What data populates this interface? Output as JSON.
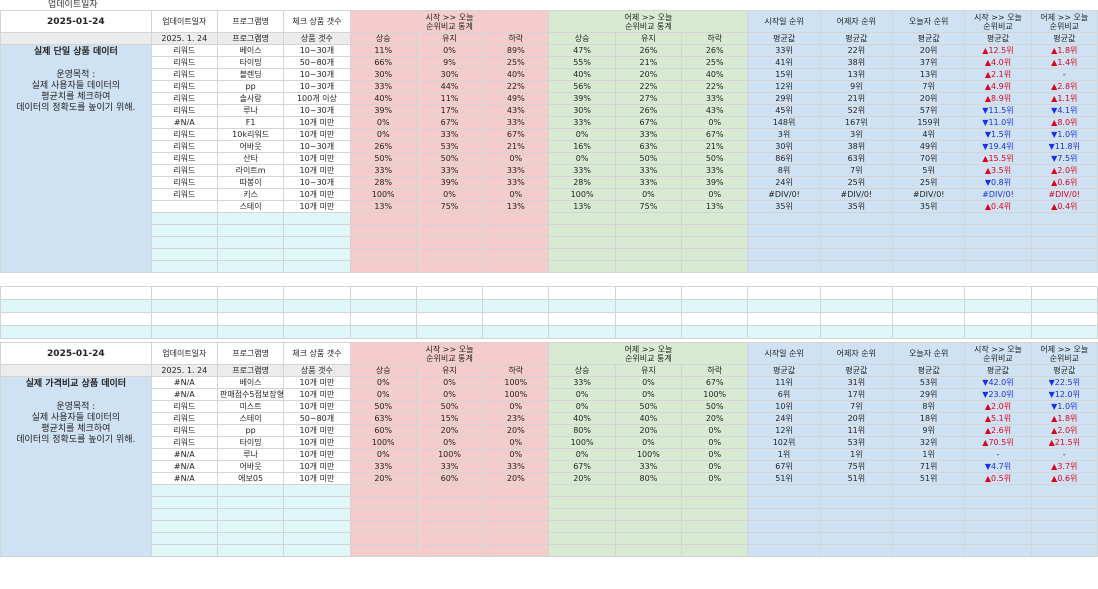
{
  "top": {
    "title": "업데이트일자"
  },
  "columns": {
    "update": "업데이트일자",
    "program": "프로그램명",
    "check_count": "체크 상품 갯수",
    "start_today": "시작 >> 오늘\n순위비교 통계",
    "yesterday_today": "어제 >> 오늘\n순위비교 통계",
    "start_rank": "시작일 순위",
    "yesterday_rank": "어제자 순위",
    "today_rank": "오늘자 순위",
    "start_today_cmp": "시작 >> 오늘\n순위비교",
    "yesterday_today_cmp": "어제 >> 오늘\n순위비교",
    "up": "상승",
    "keep": "유지",
    "down": "하락",
    "avg": "평균값",
    "product_count": "상품 갯수",
    "date_short": "2025. 1. 24"
  },
  "sections": [
    {
      "date": "2025-01-24",
      "title": "실제 단일 상품 데이터",
      "purpose": "운영목적 :\n실제 사용자들 데이터의\n평균치를 체크하여\n데이터의 정확도를 높이기 위해.",
      "rows": [
        [
          "리워드",
          "베이스",
          "10~30개",
          "11%",
          "0%",
          "89%",
          "47%",
          "26%",
          "26%",
          "33위",
          "22위",
          "20위",
          "▲12.5위",
          "▲1.8위"
        ],
        [
          "리워드",
          "타이밍",
          "50~80개",
          "66%",
          "9%",
          "25%",
          "55%",
          "21%",
          "25%",
          "41위",
          "38위",
          "37위",
          "▲4.0위",
          "▲1.4위"
        ],
        [
          "리워드",
          "블렌딩",
          "10~30개",
          "30%",
          "30%",
          "40%",
          "40%",
          "20%",
          "40%",
          "15위",
          "13위",
          "13위",
          "▲2.1위",
          "-"
        ],
        [
          "리워드",
          "pp",
          "10~30개",
          "33%",
          "44%",
          "22%",
          "56%",
          "22%",
          "22%",
          "12위",
          "9위",
          "7위",
          "▲4.9위",
          "▲2.8위"
        ],
        [
          "리워드",
          "솔사랑",
          "100개 이상",
          "40%",
          "11%",
          "49%",
          "39%",
          "27%",
          "33%",
          "29위",
          "21위",
          "20위",
          "▲8.9위",
          "▲1.1위"
        ],
        [
          "리워드",
          "루나",
          "10~30개",
          "39%",
          "17%",
          "43%",
          "30%",
          "26%",
          "43%",
          "45위",
          "52위",
          "57위",
          "▼11.5위",
          "▼4.1위"
        ],
        [
          "#N/A",
          "F1",
          "10개 미만",
          "0%",
          "67%",
          "33%",
          "33%",
          "67%",
          "0%",
          "148위",
          "167위",
          "159위",
          "▼11.0위",
          "▲8.0위"
        ],
        [
          "리워드",
          "10k리워드",
          "10개 미만",
          "0%",
          "33%",
          "67%",
          "0%",
          "33%",
          "67%",
          "3위",
          "3위",
          "4위",
          "▼1.5위",
          "▼1.0위"
        ],
        [
          "리워드",
          "어바웃",
          "10~30개",
          "26%",
          "53%",
          "21%",
          "16%",
          "63%",
          "21%",
          "30위",
          "38위",
          "49위",
          "▼19.4위",
          "▼11.8위"
        ],
        [
          "리워드",
          "산타",
          "10개 미만",
          "50%",
          "50%",
          "0%",
          "0%",
          "50%",
          "50%",
          "86위",
          "63위",
          "70위",
          "▲15.5위",
          "▼7.5위"
        ],
        [
          "리워드",
          "라이트m",
          "10개 미만",
          "33%",
          "33%",
          "33%",
          "33%",
          "33%",
          "33%",
          "8위",
          "7위",
          "5위",
          "▲3.5위",
          "▲2.0위"
        ],
        [
          "리워드",
          "따봉이",
          "10~30개",
          "28%",
          "39%",
          "33%",
          "28%",
          "33%",
          "39%",
          "24위",
          "25위",
          "25위",
          "▼0.8위",
          "▲0.6위"
        ],
        [
          "리워드",
          "키스",
          "10개 미만",
          "100%",
          "0%",
          "0%",
          "100%",
          "0%",
          "0%",
          "#DIV/0!",
          "#DIV/0!",
          "#DIV/0!",
          "#DIV/0!",
          "#DIV/0!"
        ],
        [
          "",
          "스테이",
          "10개 미만",
          "13%",
          "75%",
          "13%",
          "13%",
          "75%",
          "13%",
          "35위",
          "35위",
          "35위",
          "▲0.4위",
          "▲0.4위"
        ]
      ]
    },
    {
      "date": "2025-01-24",
      "title": "실제 가격비교 상품 데이터",
      "purpose": "운영목적 :\n실제 사용자들 데이터의\n평균치를 체크하여\n데이터의 정확도를 높이기 위해.",
      "rows": [
        [
          "#N/A",
          "베이스",
          "10개 미만",
          "0%",
          "0%",
          "100%",
          "33%",
          "0%",
          "67%",
          "11위",
          "31위",
          "53위",
          "▼42.0위",
          "▼22.5위"
        ],
        [
          "#N/A",
          "판매점수5점보장형",
          "10개 미만",
          "0%",
          "0%",
          "100%",
          "0%",
          "0%",
          "100%",
          "6위",
          "17위",
          "29위",
          "▼23.0위",
          "▼12.0위"
        ],
        [
          "리워드",
          "미스트",
          "10개 미만",
          "50%",
          "50%",
          "0%",
          "0%",
          "50%",
          "50%",
          "10위",
          "7위",
          "8위",
          "▲2.0위",
          "▼1.0위"
        ],
        [
          "리워드",
          "스테이",
          "50~80개",
          "63%",
          "15%",
          "23%",
          "40%",
          "40%",
          "20%",
          "24위",
          "20위",
          "18위",
          "▲5.1위",
          "▲1.8위"
        ],
        [
          "리워드",
          "pp",
          "10개 미만",
          "60%",
          "20%",
          "20%",
          "80%",
          "20%",
          "0%",
          "12위",
          "11위",
          "9위",
          "▲2.6위",
          "▲2.0위"
        ],
        [
          "리워드",
          "타이밍",
          "10개 미만",
          "100%",
          "0%",
          "0%",
          "100%",
          "0%",
          "0%",
          "102위",
          "53위",
          "32위",
          "▲70.5위",
          "▲21.5위"
        ],
        [
          "#N/A",
          "루나",
          "10개 미만",
          "0%",
          "100%",
          "0%",
          "0%",
          "100%",
          "0%",
          "1위",
          "1위",
          "1위",
          "-",
          "-"
        ],
        [
          "#N/A",
          "어바웃",
          "10개 미만",
          "33%",
          "33%",
          "33%",
          "67%",
          "33%",
          "0%",
          "67위",
          "75위",
          "71위",
          "▼4.7위",
          "▲3.7위"
        ],
        [
          "#N/A",
          "에보05",
          "10개 미만",
          "20%",
          "60%",
          "20%",
          "20%",
          "80%",
          "0%",
          "51위",
          "51위",
          "51위",
          "▲0.5위",
          "▲0.6위"
        ]
      ]
    }
  ]
}
